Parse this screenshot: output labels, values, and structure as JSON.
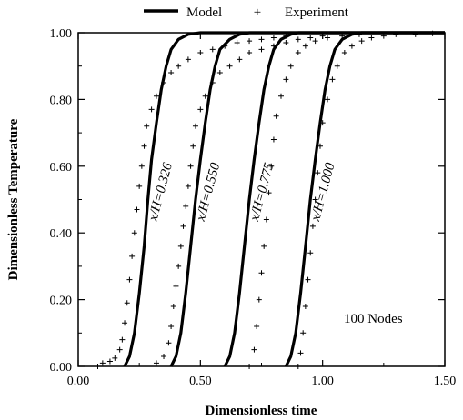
{
  "chart_data": {
    "type": "line",
    "xlabel": "Dimensionless time",
    "ylabel": "Dimensionless Temperature",
    "xlim": [
      0.0,
      1.5
    ],
    "ylim": [
      0.0,
      1.0
    ],
    "x_ticks": [
      "0.00",
      "0.50",
      "1.00",
      "1.50"
    ],
    "y_ticks": [
      "0.00",
      "0.20",
      "0.40",
      "0.60",
      "0.80",
      "1.00"
    ],
    "grid": false,
    "legend": {
      "placement": "top",
      "entries": [
        {
          "label": "Model",
          "marker": "line"
        },
        {
          "label": "Experiment",
          "marker": "plus"
        }
      ]
    },
    "annotation": "100 Nodes",
    "series": [
      {
        "curve_label": "x/H=0.326",
        "model": [
          [
            0.19,
            0.0
          ],
          [
            0.21,
            0.03
          ],
          [
            0.23,
            0.1
          ],
          [
            0.25,
            0.22
          ],
          [
            0.27,
            0.36
          ],
          [
            0.285,
            0.5
          ],
          [
            0.3,
            0.62
          ],
          [
            0.32,
            0.73
          ],
          [
            0.34,
            0.83
          ],
          [
            0.36,
            0.9
          ],
          [
            0.38,
            0.95
          ],
          [
            0.41,
            0.98
          ],
          [
            0.45,
            0.995
          ],
          [
            0.5,
            1.0
          ],
          [
            1.5,
            1.0
          ]
        ],
        "experiment": [
          [
            0.08,
            0.0
          ],
          [
            0.1,
            0.01
          ],
          [
            0.13,
            0.015
          ],
          [
            0.15,
            0.025
          ],
          [
            0.17,
            0.05
          ],
          [
            0.18,
            0.08
          ],
          [
            0.19,
            0.13
          ],
          [
            0.2,
            0.19
          ],
          [
            0.21,
            0.26
          ],
          [
            0.22,
            0.33
          ],
          [
            0.23,
            0.4
          ],
          [
            0.24,
            0.47
          ],
          [
            0.25,
            0.54
          ],
          [
            0.26,
            0.6
          ],
          [
            0.27,
            0.66
          ],
          [
            0.28,
            0.72
          ],
          [
            0.3,
            0.77
          ],
          [
            0.32,
            0.81
          ],
          [
            0.35,
            0.85
          ],
          [
            0.38,
            0.88
          ],
          [
            0.41,
            0.9
          ],
          [
            0.45,
            0.92
          ],
          [
            0.5,
            0.94
          ],
          [
            0.55,
            0.95
          ],
          [
            0.6,
            0.96
          ],
          [
            0.65,
            0.97
          ],
          [
            0.7,
            0.975
          ],
          [
            0.75,
            0.98
          ],
          [
            0.8,
            0.985
          ],
          [
            0.85,
            0.99
          ]
        ]
      },
      {
        "curve_label": "x/H=0.550",
        "model": [
          [
            0.38,
            0.0
          ],
          [
            0.4,
            0.03
          ],
          [
            0.42,
            0.1
          ],
          [
            0.44,
            0.22
          ],
          [
            0.46,
            0.36
          ],
          [
            0.48,
            0.5
          ],
          [
            0.5,
            0.62
          ],
          [
            0.52,
            0.73
          ],
          [
            0.54,
            0.83
          ],
          [
            0.56,
            0.9
          ],
          [
            0.58,
            0.95
          ],
          [
            0.62,
            0.98
          ],
          [
            0.66,
            0.995
          ],
          [
            0.7,
            1.0
          ],
          [
            1.5,
            1.0
          ]
        ],
        "experiment": [
          [
            0.32,
            0.01
          ],
          [
            0.35,
            0.03
          ],
          [
            0.37,
            0.07
          ],
          [
            0.38,
            0.12
          ],
          [
            0.39,
            0.18
          ],
          [
            0.4,
            0.24
          ],
          [
            0.41,
            0.3
          ],
          [
            0.42,
            0.36
          ],
          [
            0.43,
            0.42
          ],
          [
            0.44,
            0.48
          ],
          [
            0.45,
            0.54
          ],
          [
            0.46,
            0.6
          ],
          [
            0.47,
            0.66
          ],
          [
            0.48,
            0.72
          ],
          [
            0.5,
            0.77
          ],
          [
            0.52,
            0.81
          ],
          [
            0.55,
            0.85
          ],
          [
            0.58,
            0.88
          ],
          [
            0.62,
            0.9
          ],
          [
            0.66,
            0.92
          ],
          [
            0.7,
            0.94
          ],
          [
            0.75,
            0.95
          ],
          [
            0.8,
            0.96
          ],
          [
            0.85,
            0.97
          ],
          [
            0.9,
            0.98
          ],
          [
            0.95,
            0.985
          ],
          [
            1.0,
            0.99
          ]
        ]
      },
      {
        "curve_label": "x/H=0.775",
        "model": [
          [
            0.6,
            0.0
          ],
          [
            0.62,
            0.03
          ],
          [
            0.64,
            0.1
          ],
          [
            0.66,
            0.22
          ],
          [
            0.68,
            0.36
          ],
          [
            0.7,
            0.5
          ],
          [
            0.72,
            0.62
          ],
          [
            0.74,
            0.73
          ],
          [
            0.76,
            0.83
          ],
          [
            0.78,
            0.9
          ],
          [
            0.8,
            0.95
          ],
          [
            0.83,
            0.98
          ],
          [
            0.87,
            0.995
          ],
          [
            0.9,
            1.0
          ],
          [
            1.5,
            1.0
          ]
        ],
        "experiment": [
          [
            0.7,
            0.0
          ],
          [
            0.72,
            0.05
          ],
          [
            0.73,
            0.12
          ],
          [
            0.74,
            0.2
          ],
          [
            0.75,
            0.28
          ],
          [
            0.76,
            0.36
          ],
          [
            0.77,
            0.44
          ],
          [
            0.78,
            0.52
          ],
          [
            0.79,
            0.6
          ],
          [
            0.8,
            0.68
          ],
          [
            0.81,
            0.75
          ],
          [
            0.83,
            0.81
          ],
          [
            0.85,
            0.86
          ],
          [
            0.87,
            0.9
          ],
          [
            0.9,
            0.94
          ],
          [
            0.93,
            0.96
          ],
          [
            0.97,
            0.975
          ],
          [
            1.02,
            0.985
          ],
          [
            1.08,
            0.99
          ],
          [
            1.15,
            0.995
          ]
        ]
      },
      {
        "curve_label": "x/H=1.000",
        "model": [
          [
            0.85,
            0.0
          ],
          [
            0.87,
            0.03
          ],
          [
            0.89,
            0.1
          ],
          [
            0.91,
            0.22
          ],
          [
            0.93,
            0.36
          ],
          [
            0.95,
            0.5
          ],
          [
            0.97,
            0.62
          ],
          [
            0.99,
            0.73
          ],
          [
            1.01,
            0.83
          ],
          [
            1.03,
            0.9
          ],
          [
            1.05,
            0.95
          ],
          [
            1.08,
            0.98
          ],
          [
            1.12,
            0.995
          ],
          [
            1.16,
            1.0
          ],
          [
            1.5,
            1.0
          ]
        ],
        "experiment": [
          [
            0.9,
            0.0
          ],
          [
            0.91,
            0.04
          ],
          [
            0.92,
            0.1
          ],
          [
            0.93,
            0.18
          ],
          [
            0.94,
            0.26
          ],
          [
            0.95,
            0.34
          ],
          [
            0.96,
            0.42
          ],
          [
            0.97,
            0.5
          ],
          [
            0.98,
            0.58
          ],
          [
            0.99,
            0.66
          ],
          [
            1.0,
            0.73
          ],
          [
            1.02,
            0.8
          ],
          [
            1.04,
            0.86
          ],
          [
            1.06,
            0.9
          ],
          [
            1.09,
            0.94
          ],
          [
            1.12,
            0.96
          ],
          [
            1.16,
            0.975
          ],
          [
            1.2,
            0.985
          ],
          [
            1.25,
            0.99
          ],
          [
            1.3,
            0.995
          ],
          [
            1.38,
            0.995
          ],
          [
            1.45,
            0.998
          ]
        ]
      }
    ]
  }
}
